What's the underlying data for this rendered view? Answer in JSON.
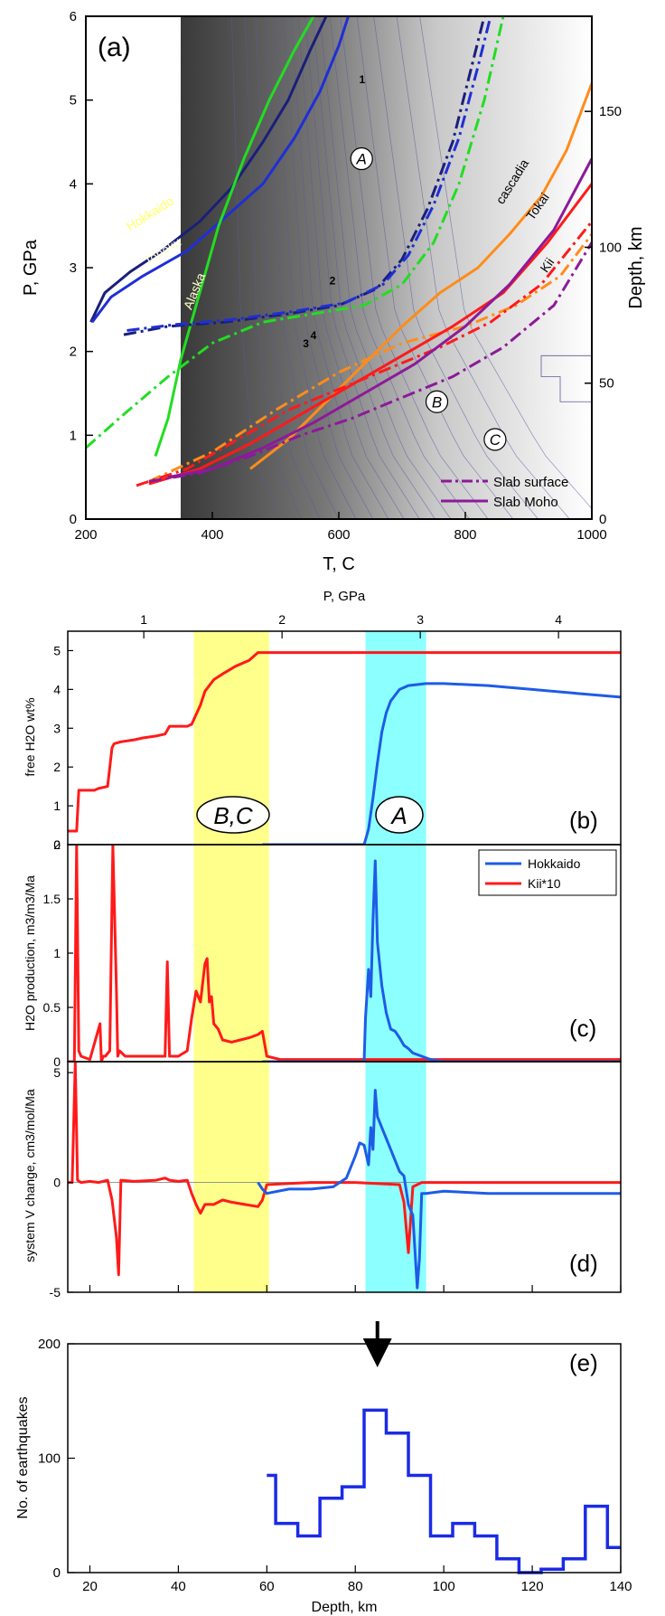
{
  "chart_data": [
    {
      "id": "a",
      "type": "line",
      "panel_label": "(a)",
      "xlabel": "T, C",
      "ylabel": "P, GPa",
      "y2label": "Depth, km",
      "xlim": [
        200,
        1000
      ],
      "ylim": [
        0,
        6
      ],
      "y2lim": [
        0,
        185
      ],
      "xticks": [
        "200",
        "400",
        "600",
        "800",
        "1000"
      ],
      "yticks": [
        "0",
        "1",
        "2",
        "3",
        "4",
        "5",
        "6"
      ],
      "y2ticks": [
        "0",
        "50",
        "100",
        "150"
      ],
      "contour_labels": [
        {
          "text": "1",
          "T": 637,
          "P": 5.2
        },
        {
          "text": "2",
          "T": 590,
          "P": 2.8
        },
        {
          "text": "3",
          "T": 548,
          "P": 2.05
        },
        {
          "text": "4",
          "T": 560,
          "P": 2.15
        }
      ],
      "regions": [
        {
          "label": "A",
          "T": 636,
          "P": 4.3
        },
        {
          "label": "B",
          "T": 755,
          "P": 1.4
        },
        {
          "label": "C",
          "T": 847,
          "P": 0.95
        }
      ],
      "region_text": [
        "A",
        "B",
        "C"
      ],
      "curve_labels": [
        {
          "text": "Hokkaido",
          "T": 305,
          "P": 3.6
        },
        {
          "text": "Tohoku",
          "T": 325,
          "P": 3.15
        },
        {
          "text": "Alaska",
          "T": 378,
          "P": 2.7
        },
        {
          "text": "cascadia",
          "T": 880,
          "P": 4.0
        },
        {
          "text": "Tokai",
          "T": 920,
          "P": 3.7
        },
        {
          "text": "Kii",
          "T": 935,
          "P": 3.0
        }
      ],
      "series": [
        {
          "name": "Hokkaido",
          "color": "#1a1f7a",
          "style": "solid",
          "T": [
            208,
            230,
            270,
            320,
            380,
            430,
            480,
            520,
            555,
            580
          ],
          "P": [
            2.35,
            2.7,
            2.95,
            3.2,
            3.55,
            3.95,
            4.5,
            5.0,
            5.6,
            6.0
          ]
        },
        {
          "name": "Tohoku",
          "color": "#1e2fd6",
          "style": "solid",
          "T": [
            210,
            240,
            290,
            360,
            420,
            480,
            530,
            570,
            600,
            615
          ],
          "P": [
            2.35,
            2.65,
            2.9,
            3.2,
            3.6,
            4.0,
            4.55,
            5.1,
            5.65,
            6.0
          ]
        },
        {
          "name": "Alaska",
          "color": "#22dd22",
          "style": "solid",
          "T": [
            310,
            330,
            350,
            380,
            410,
            450,
            490,
            530,
            560
          ],
          "P": [
            0.75,
            1.2,
            1.9,
            2.7,
            3.5,
            4.3,
            5.0,
            5.6,
            6.0
          ]
        },
        {
          "name": "Hokkaido Slab surface",
          "color": "#1a1f7a",
          "style": "dashdot",
          "T": [
            260,
            330,
            420,
            520,
            600,
            660,
            700,
            740,
            780,
            810,
            830
          ],
          "P": [
            2.2,
            2.3,
            2.35,
            2.45,
            2.55,
            2.75,
            3.1,
            3.7,
            4.5,
            5.4,
            6.0
          ]
        },
        {
          "name": "Tohoku Slab surface",
          "color": "#1e2fd6",
          "style": "dashdot",
          "T": [
            265,
            340,
            430,
            530,
            610,
            670,
            710,
            750,
            790,
            820,
            840
          ],
          "P": [
            2.25,
            2.32,
            2.38,
            2.48,
            2.58,
            2.8,
            3.15,
            3.75,
            4.55,
            5.4,
            6.0
          ]
        },
        {
          "name": "Alaska Slab surface",
          "color": "#22dd22",
          "style": "dashdot",
          "T": [
            200,
            260,
            330,
            400,
            480,
            560,
            640,
            700,
            750,
            790,
            830,
            860
          ],
          "P": [
            0.85,
            1.25,
            1.7,
            2.1,
            2.35,
            2.45,
            2.55,
            2.8,
            3.3,
            4.0,
            5.0,
            6.0
          ]
        },
        {
          "name": "Cascadia",
          "color": "#ff8c1a",
          "style": "solid",
          "T": [
            460,
            520,
            580,
            640,
            700,
            760,
            820,
            870,
            920,
            960,
            1000
          ],
          "P": [
            0.6,
            0.95,
            1.4,
            1.85,
            2.3,
            2.7,
            3.0,
            3.4,
            3.85,
            4.4,
            5.2
          ]
        },
        {
          "name": "Cascadia Slab surface",
          "color": "#ff8c1a",
          "style": "dashdot",
          "T": [
            300,
            400,
            500,
            600,
            700,
            800,
            880,
            950,
            1000
          ],
          "P": [
            0.45,
            0.8,
            1.3,
            1.75,
            2.1,
            2.3,
            2.55,
            2.9,
            3.4
          ]
        },
        {
          "name": "Tokai",
          "color": "#ff1a1a",
          "style": "solid",
          "T": [
            300,
            380,
            460,
            540,
            620,
            700,
            780,
            860,
            930,
            1000
          ],
          "P": [
            0.42,
            0.6,
            0.9,
            1.25,
            1.6,
            1.95,
            2.3,
            2.7,
            3.3,
            4.0
          ]
        },
        {
          "name": "Tokai Slab surface",
          "color": "#ff1a1a",
          "style": "dashdot",
          "T": [
            280,
            360,
            440,
            520,
            600,
            680,
            760,
            840,
            920,
            1000
          ],
          "P": [
            0.4,
            0.6,
            0.95,
            1.3,
            1.55,
            1.8,
            2.05,
            2.35,
            2.8,
            3.55
          ]
        },
        {
          "name": "Kii",
          "color": "#8c1a99",
          "style": "solid",
          "T": [
            330,
            400,
            480,
            560,
            640,
            720,
            800,
            870,
            940,
            1000
          ],
          "P": [
            0.5,
            0.6,
            0.85,
            1.15,
            1.5,
            1.85,
            2.3,
            2.8,
            3.45,
            4.3
          ]
        },
        {
          "name": "Kii Slab surface",
          "color": "#8c1a99",
          "style": "dashdot",
          "T": [
            300,
            380,
            460,
            540,
            620,
            700,
            780,
            860,
            940,
            1000
          ],
          "P": [
            0.45,
            0.55,
            0.75,
            1.0,
            1.2,
            1.45,
            1.7,
            2.05,
            2.55,
            3.3
          ]
        }
      ],
      "legend": {
        "position": "bottom-right",
        "entries": [
          {
            "label": "Slab surface",
            "color": "#8c1a99",
            "style": "dashdot"
          },
          {
            "label": "Slab Moho",
            "color": "#8c1a99",
            "style": "solid"
          }
        ]
      }
    },
    {
      "id": "b",
      "type": "line",
      "panel_label": "(b)",
      "top_axis_label": "P, GPa",
      "top_ticks": [
        "1",
        "2",
        "3",
        "4"
      ],
      "ylabel": "free H2O wt%",
      "ylim": [
        0,
        5.5
      ],
      "yticks": [
        "0",
        "1",
        "2",
        "3",
        "4",
        "5"
      ],
      "band_labels": [
        "B,C",
        "A"
      ],
      "series": [
        {
          "name": "Kii*10",
          "color": "#ff1a1a",
          "x": [
            14,
            16,
            17,
            17.5,
            21,
            22,
            24,
            25,
            25.5,
            27,
            30,
            32,
            35,
            37,
            38,
            40,
            42,
            43,
            45,
            46,
            48,
            50,
            53,
            56,
            58,
            60,
            65,
            80,
            100,
            120,
            140
          ],
          "y": [
            0.35,
            0.35,
            0.35,
            1.4,
            1.4,
            1.45,
            1.5,
            2.5,
            2.6,
            2.65,
            2.7,
            2.75,
            2.8,
            2.85,
            3.05,
            3.05,
            3.05,
            3.1,
            3.6,
            3.95,
            4.25,
            4.4,
            4.6,
            4.75,
            4.95,
            4.95,
            4.95,
            4.95,
            4.95,
            4.95,
            4.95
          ]
        },
        {
          "name": "Hokkaido",
          "color": "#1e5ce6",
          "x": [
            59,
            70,
            80,
            82,
            83,
            84,
            85,
            86,
            87,
            88,
            90,
            92,
            96,
            100,
            110,
            120,
            130,
            140
          ],
          "y": [
            0,
            0,
            0,
            0,
            0.4,
            1.2,
            2.1,
            2.9,
            3.4,
            3.7,
            4.0,
            4.1,
            4.15,
            4.15,
            4.1,
            4.0,
            3.9,
            3.8
          ]
        }
      ]
    },
    {
      "id": "c",
      "type": "line",
      "panel_label": "(c)",
      "ylabel": "H2O production, m3/m3/Ma",
      "ylim": [
        0,
        2
      ],
      "yticks": [
        "0",
        "0.5",
        "1",
        "1.5",
        "2"
      ],
      "legend": {
        "position": "top-right",
        "entries": [
          {
            "label": "Hokkaido",
            "color": "#1e5ce6"
          },
          {
            "label": "Kii*10",
            "color": "#ff1a1a"
          }
        ]
      },
      "series": [
        {
          "name": "Kii*10",
          "color": "#ff1a1a",
          "x": [
            14,
            16.5,
            17,
            17.5,
            18,
            20,
            22.3,
            22.6,
            23,
            23.5,
            24.5,
            25.2,
            25.5,
            26,
            26.3,
            26.7,
            28,
            30,
            34,
            37,
            37.5,
            38,
            40,
            42,
            43,
            44,
            45,
            46,
            46.5,
            47,
            47.5,
            48,
            49,
            50,
            52,
            54,
            56,
            58,
            59,
            60,
            63,
            70,
            90,
            120,
            140
          ],
          "y": [
            0,
            0,
            2.0,
            0.1,
            0.05,
            0.02,
            0.35,
            0.0,
            0.05,
            0.05,
            0.1,
            2.0,
            1.5,
            0.65,
            0.05,
            0.1,
            0.05,
            0.05,
            0.05,
            0.05,
            0.92,
            0.05,
            0.05,
            0.1,
            0.4,
            0.65,
            0.55,
            0.9,
            0.95,
            0.55,
            0.6,
            0.35,
            0.3,
            0.2,
            0.18,
            0.2,
            0.22,
            0.25,
            0.28,
            0.05,
            0.02,
            0.02,
            0.02,
            0.02,
            0.02
          ]
        },
        {
          "name": "Hokkaido",
          "color": "#1e5ce6",
          "x": [
            59,
            70,
            82,
            82.3,
            83,
            83.5,
            84,
            84.5,
            85,
            86,
            87,
            88,
            89,
            90,
            91,
            92,
            93,
            95,
            97,
            100,
            120,
            140
          ],
          "y": [
            0,
            0,
            0,
            0.4,
            0.85,
            0.6,
            1.3,
            1.85,
            1.1,
            0.7,
            0.45,
            0.3,
            0.28,
            0.22,
            0.15,
            0.12,
            0.08,
            0.05,
            0.02,
            0,
            0,
            0
          ]
        }
      ]
    },
    {
      "id": "d",
      "type": "line",
      "panel_label": "(d)",
      "ylabel": "system V change, cm3/mol/Ma",
      "ylim": [
        -5,
        5.5
      ],
      "yticks": [
        "-5",
        "0",
        "5"
      ],
      "series": [
        {
          "name": "Kii*10",
          "color": "#ff1a1a",
          "x": [
            14,
            16,
            16.7,
            17.2,
            18,
            20,
            22,
            24,
            25,
            26,
            26.5,
            27,
            30,
            35,
            37,
            38,
            40,
            42,
            43,
            44,
            45,
            46,
            48,
            50,
            52,
            55,
            58,
            59,
            60,
            65,
            70,
            80,
            90,
            91,
            92,
            93,
            95,
            100,
            110,
            120,
            130,
            140
          ],
          "y": [
            0,
            0,
            5.5,
            0.1,
            0,
            0.05,
            0,
            0.1,
            -0.8,
            -2.5,
            -4.2,
            0.1,
            0.05,
            0.1,
            0.2,
            0.1,
            0.05,
            0.1,
            -0.5,
            -1.0,
            -1.4,
            -1.0,
            -1.0,
            -0.8,
            -0.9,
            -1.0,
            -1.1,
            -0.8,
            -0.1,
            -0.05,
            0,
            0,
            -0.1,
            -0.9,
            -3.2,
            -0.2,
            0,
            0,
            0,
            0,
            0,
            0
          ]
        },
        {
          "name": "Hokkaido",
          "color": "#1e5ce6",
          "x": [
            58,
            59,
            60,
            65,
            70,
            75,
            78,
            80,
            81,
            82,
            83,
            83.5,
            84,
            84.5,
            85,
            86,
            87,
            88,
            89,
            90,
            91,
            92,
            93,
            94,
            94.5,
            95,
            96,
            100,
            110,
            120,
            130,
            140
          ],
          "y": [
            0,
            -0.3,
            -0.5,
            -0.3,
            -0.3,
            -0.2,
            0.2,
            1.2,
            1.8,
            1.7,
            0.8,
            2.5,
            1.5,
            4.2,
            3.0,
            2.5,
            2.0,
            1.5,
            1.0,
            0.5,
            0.3,
            -1.0,
            -1.5,
            -4.8,
            -3.5,
            -0.5,
            -0.5,
            -0.4,
            -0.5,
            -0.5,
            -0.5,
            -0.5
          ]
        }
      ]
    },
    {
      "id": "e",
      "type": "bar",
      "panel_label": "(e)",
      "xlabel": "Depth, km",
      "ylabel": "No. of earthquakes",
      "xlim": [
        15,
        140
      ],
      "ylim": [
        0,
        200
      ],
      "xticks": [
        "20",
        "40",
        "60",
        "80",
        "100",
        "120",
        "140"
      ],
      "yticks": [
        "0",
        "100",
        "200"
      ],
      "color": "#1a2be6",
      "bin_edges": [
        60,
        62,
        67,
        72,
        77,
        82,
        87,
        92,
        97,
        102,
        107,
        112,
        117,
        122,
        127,
        132,
        137,
        140
      ],
      "values": [
        85,
        43,
        32,
        65,
        75,
        142,
        122,
        85,
        32,
        43,
        32,
        12,
        0,
        3,
        12,
        58,
        22
      ],
      "arrow_at_depth": 85
    }
  ],
  "shared_bottom_x": {
    "xlim": [
      15,
      140
    ],
    "p_of_depth": {
      "depth": [
        15,
        140
      ],
      "P": [
        0.45,
        4.45
      ]
    }
  },
  "bands": [
    {
      "label": "B,C",
      "x0": 43.5,
      "x1": 60.5,
      "color": "#ffff80"
    },
    {
      "label": "A",
      "x0": 82.3,
      "x1": 96,
      "color": "#80ffff"
    }
  ]
}
